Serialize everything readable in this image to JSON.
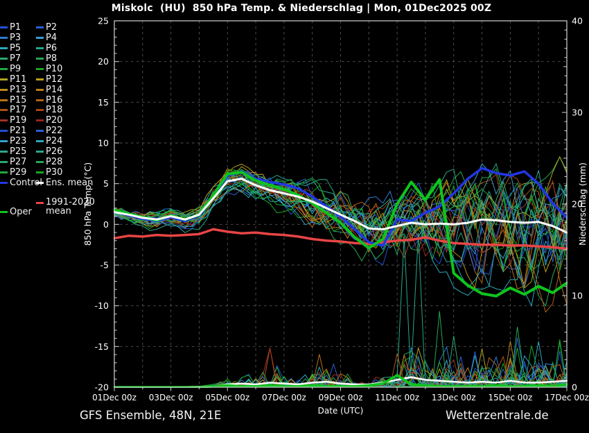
{
  "title": "Miskolc  (HU)  850 hPa Temp. & Niederschlag | Mon, 01Dec2025 00Z",
  "footer": {
    "left": "GFS Ensemble, 48N, 21E",
    "right": "Wetterzentrale.de"
  },
  "legend": {
    "members": [
      {
        "label": "P1",
        "color": "#2150d2"
      },
      {
        "label": "P2",
        "color": "#2b5fd6"
      },
      {
        "label": "P3",
        "color": "#2e7ad2"
      },
      {
        "label": "P4",
        "color": "#369fcd"
      },
      {
        "label": "P5",
        "color": "#2ba9b9"
      },
      {
        "label": "P6",
        "color": "#28a88c"
      },
      {
        "label": "P7",
        "color": "#2aa96c"
      },
      {
        "label": "P8",
        "color": "#24a853"
      },
      {
        "label": "P9",
        "color": "#1fa93d"
      },
      {
        "label": "P10",
        "color": "#18a823"
      },
      {
        "label": "P11",
        "color": "#b1a51f"
      },
      {
        "label": "P12",
        "color": "#bda318"
      },
      {
        "label": "P13",
        "color": "#bd8e1a"
      },
      {
        "label": "P14",
        "color": "#bb7f18"
      },
      {
        "label": "P15",
        "color": "#b97317"
      },
      {
        "label": "P16",
        "color": "#b26316"
      },
      {
        "label": "P17",
        "color": "#ad5314"
      },
      {
        "label": "P18",
        "color": "#a84413"
      },
      {
        "label": "P19",
        "color": "#a03326"
      },
      {
        "label": "P20",
        "color": "#96241e"
      },
      {
        "label": "P21",
        "color": "#2150d2"
      },
      {
        "label": "P22",
        "color": "#2b5fd6"
      },
      {
        "label": "P23",
        "color": "#369fcd"
      },
      {
        "label": "P24",
        "color": "#2ba9b9"
      },
      {
        "label": "P25",
        "color": "#28a88c"
      },
      {
        "label": "P26",
        "color": "#28a88c"
      },
      {
        "label": "P27",
        "color": "#2aa96c"
      },
      {
        "label": "P28",
        "color": "#24a853"
      },
      {
        "label": "P29",
        "color": "#1fa93d"
      },
      {
        "label": "P30",
        "color": "#18a823"
      }
    ],
    "control": {
      "label": "Control",
      "color": "#2236e6"
    },
    "ens_mean": {
      "label": "Ens. mean",
      "color": "#ffffff"
    },
    "clim": {
      "label_line1": "1991-2020",
      "label_line2": "mean",
      "color": "#e84545"
    },
    "oper": {
      "label": "Oper",
      "color": "#0fc41e"
    }
  },
  "chart_data": {
    "type": "line",
    "title": "Miskolc  (HU)  850 hPa Temp. & Niederschlag | Mon, 01Dec2025 00Z",
    "xlabel": "Date (UTC)",
    "ylabel_left": "850 hPa Temp. (°C)",
    "ylabel_right": "Niederschlag (mm)",
    "x_tick_labels": [
      "01Dec 00z",
      "03Dec 00z",
      "05Dec 00z",
      "07Dec 00z",
      "09Dec 00z",
      "11Dec 00z",
      "13Dec 00z",
      "15Dec 00z",
      "17Dec 00z"
    ],
    "x_tick_days": [
      1,
      3,
      5,
      7,
      9,
      11,
      13,
      15,
      17
    ],
    "x_range_days": [
      1,
      17
    ],
    "ylim_left": [
      -20,
      25
    ],
    "yticks_left": [
      25,
      20,
      15,
      10,
      5,
      0,
      -5,
      -10,
      -15,
      -20
    ],
    "ylim_right": [
      0,
      40
    ],
    "yticks_right": [
      40,
      30,
      20,
      10,
      0
    ],
    "grid": true,
    "legend_position": "left",
    "background": "#000000",
    "x_days_sampling": {
      "start": 1,
      "end": 17,
      "step_days": 0.5
    },
    "series": [
      {
        "name": "Ens. mean",
        "axis": "temp",
        "color": "#ffffff",
        "width": 3,
        "values": [
          1.5,
          1.2,
          0.8,
          0.6,
          1.0,
          0.6,
          1.2,
          3.2,
          5.3,
          5.6,
          4.8,
          4.2,
          3.8,
          3.4,
          2.8,
          2.0,
          1.2,
          0.4,
          -0.5,
          -0.6,
          -0.2,
          0.2,
          0.0,
          0.1,
          0.0,
          0.2,
          0.6,
          0.5,
          0.3,
          0.2,
          0.3,
          -0.2,
          -1.0
        ]
      },
      {
        "name": "Control",
        "axis": "temp",
        "color": "#2236e6",
        "width": 3.5,
        "values": [
          1.6,
          1.1,
          0.7,
          0.4,
          0.9,
          0.4,
          1.1,
          3.4,
          6.0,
          6.5,
          5.6,
          5.2,
          4.9,
          4.4,
          3.4,
          2.2,
          1.0,
          -0.6,
          -2.2,
          -2.6,
          0.6,
          0.4,
          1.4,
          2.2,
          3.8,
          5.6,
          6.9,
          6.3,
          6.0,
          6.5,
          5.0,
          2.6,
          0.8
        ]
      },
      {
        "name": "Oper",
        "axis": "temp",
        "color": "#0fc41e",
        "width": 4,
        "values": [
          1.8,
          1.3,
          0.9,
          0.5,
          1.1,
          0.6,
          1.2,
          3.6,
          6.2,
          6.4,
          5.4,
          4.8,
          4.3,
          3.6,
          2.6,
          1.4,
          0.2,
          -1.6,
          -2.9,
          -1.8,
          2.5,
          5.2,
          3.0,
          5.5,
          -6.0,
          -7.5,
          -8.5,
          -8.8,
          -7.8,
          -8.6,
          -7.6,
          -8.4,
          -7.2
        ]
      },
      {
        "name": "1991-2020 mean",
        "axis": "temp",
        "color": "#e84545",
        "width": 3.5,
        "values": [
          -1.7,
          -1.4,
          -1.5,
          -1.3,
          -1.4,
          -1.3,
          -1.2,
          -0.6,
          -0.9,
          -1.1,
          -1.0,
          -1.2,
          -1.3,
          -1.5,
          -1.8,
          -2.0,
          -2.1,
          -2.3,
          -2.4,
          -2.2,
          -2.0,
          -1.9,
          -1.6,
          -2.0,
          -2.3,
          -2.4,
          -2.5,
          -2.5,
          -2.6,
          -2.6,
          -2.7,
          -2.8,
          -3.0
        ]
      },
      {
        "name": "Ens. mean precip",
        "axis": "precip",
        "color": "#ffffff",
        "width": 2.5,
        "values": [
          0,
          0,
          0,
          0,
          0,
          0,
          0.05,
          0.1,
          0.3,
          0.4,
          0.3,
          0.5,
          0.4,
          0.3,
          0.5,
          0.6,
          0.4,
          0.3,
          0.3,
          0.5,
          0.8,
          1.1,
          0.8,
          0.7,
          0.6,
          0.5,
          0.6,
          0.5,
          0.7,
          0.5,
          0.5,
          0.6,
          0.7
        ]
      },
      {
        "name": "Oper precip",
        "axis": "precip",
        "color": "#0fc41e",
        "width": 3.5,
        "values": [
          0,
          0,
          0,
          0,
          0,
          0,
          0,
          0.1,
          0.2,
          0.1,
          0.1,
          0.2,
          0.1,
          0.1,
          0.2,
          0.1,
          0.1,
          0.1,
          0.2,
          0.4,
          1.3,
          0.3,
          0.2,
          0.1,
          0.1,
          0.1,
          0.1,
          0.2,
          0.1,
          0.1,
          0.2,
          0.1,
          0.3
        ]
      }
    ],
    "ensemble": {
      "count": 30,
      "temp_envelope_low": [
        0.6,
        0.2,
        -0.6,
        -0.9,
        -0.4,
        -1.0,
        -0.4,
        1.6,
        3.8,
        3.6,
        2.6,
        2.0,
        1.4,
        0.6,
        -0.4,
        -1.6,
        -2.6,
        -3.6,
        -4.6,
        -5.0,
        -5.2,
        -5.6,
        -6.2,
        -6.6,
        -7.2,
        -7.8,
        -8.4,
        -8.8,
        -9.2,
        -9.6,
        -10.0,
        -10.5,
        -11.0
      ],
      "temp_envelope_high": [
        2.4,
        2.1,
        1.9,
        1.6,
        2.1,
        1.7,
        2.3,
        4.8,
        7.2,
        7.4,
        6.8,
        6.4,
        6.2,
        5.8,
        5.6,
        5.2,
        4.8,
        4.4,
        4.0,
        4.0,
        4.6,
        5.0,
        5.4,
        5.8,
        6.2,
        6.4,
        6.8,
        7.0,
        7.2,
        7.4,
        7.8,
        8.4,
        9.8
      ],
      "precip_member_max": [
        0.1,
        0.1,
        0.1,
        0.1,
        0.1,
        0.1,
        0.2,
        0.4,
        1.2,
        2.2,
        2.6,
        4.4,
        3.0,
        1.6,
        2.4,
        3.6,
        2.6,
        1.4,
        1.0,
        2.0,
        4.0,
        6.0,
        5.0,
        5.5,
        6.0,
        4.5,
        5.0,
        4.0,
        7.0,
        5.5,
        5.0,
        5.0,
        6.0
      ],
      "notable_precip_spikes": [
        {
          "member": 6,
          "day": 11.25,
          "mm": 16.5
        },
        {
          "member": 26,
          "day": 11.75,
          "mm": 16.8
        },
        {
          "member": 8,
          "day": 12.5,
          "mm": 8.3
        },
        {
          "member": 27,
          "day": 13.0,
          "mm": 5.6
        },
        {
          "member": 19,
          "day": 6.5,
          "mm": 4.3
        },
        {
          "member": 15,
          "day": 8.25,
          "mm": 3.6
        },
        {
          "member": 11,
          "day": 14.0,
          "mm": 4.2
        },
        {
          "member": 22,
          "day": 15.25,
          "mm": 5.4
        },
        {
          "member": 28,
          "day": 15.25,
          "mm": 6.6
        },
        {
          "member": 5,
          "day": 16.0,
          "mm": 5.0
        }
      ]
    }
  }
}
